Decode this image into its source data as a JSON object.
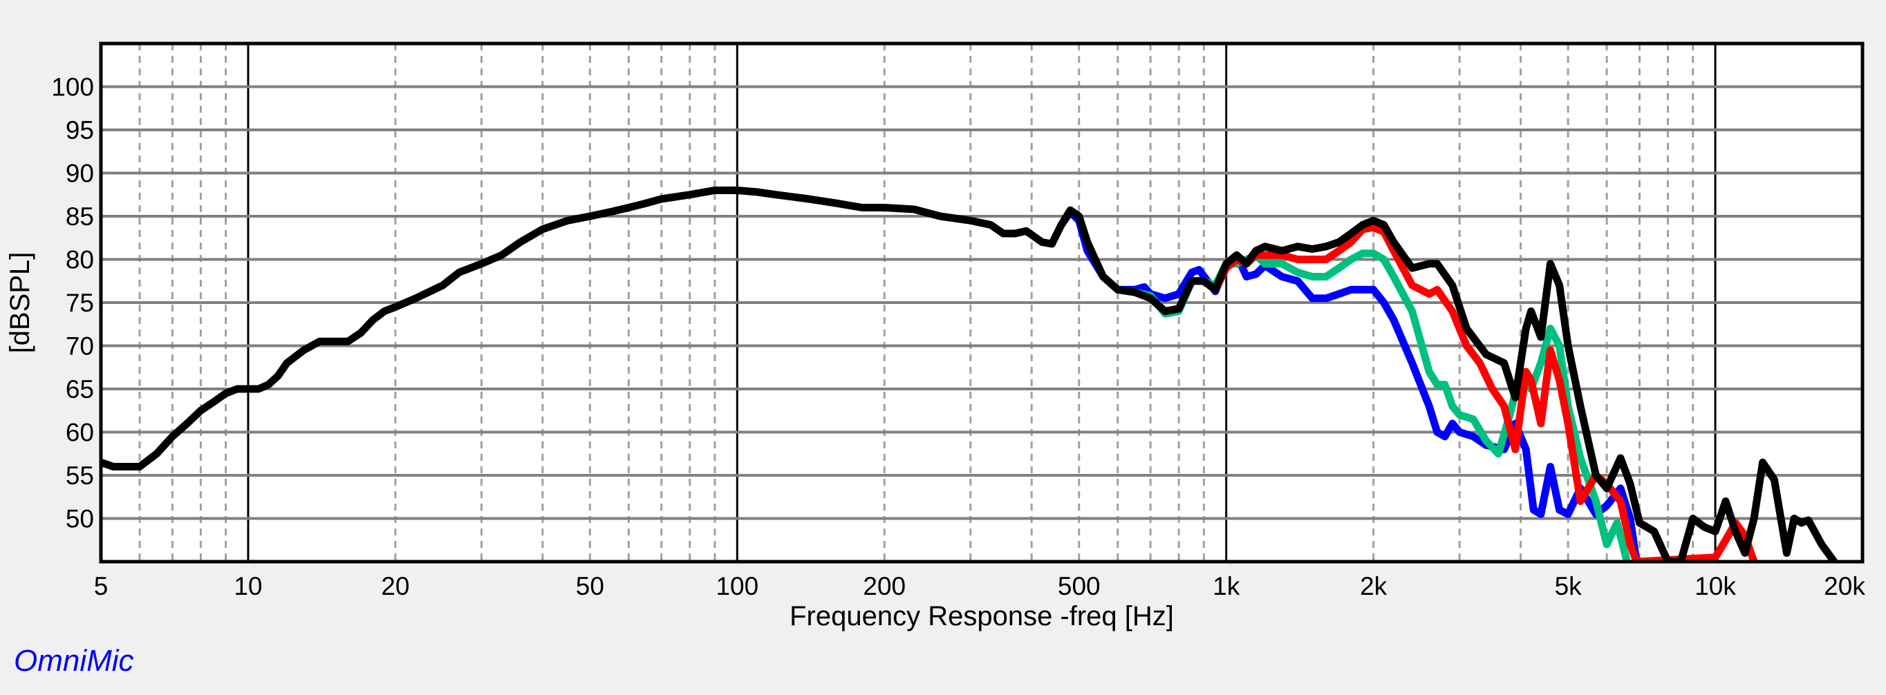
{
  "brand": {
    "label": "OmniMic",
    "color": "#0000ff"
  },
  "chart_data": {
    "type": "line",
    "title": "",
    "xlabel": "Frequency Response -freq [Hz]",
    "ylabel": "[dBSPL]",
    "xscale": "log",
    "xlim": [
      5,
      20000
    ],
    "ylim": [
      45,
      105
    ],
    "grid": true,
    "legend": null,
    "x_tick_labels": [
      {
        "value": 5,
        "label": "5"
      },
      {
        "value": 10,
        "label": "10"
      },
      {
        "value": 20,
        "label": "20"
      },
      {
        "value": 50,
        "label": "50"
      },
      {
        "value": 100,
        "label": "100"
      },
      {
        "value": 200,
        "label": "200"
      },
      {
        "value": 500,
        "label": "500"
      },
      {
        "value": 1000,
        "label": "1k"
      },
      {
        "value": 2000,
        "label": "2k"
      },
      {
        "value": 5000,
        "label": "5k"
      },
      {
        "value": 10000,
        "label": "10k"
      },
      {
        "value": 20000,
        "label": "20k"
      }
    ],
    "y_ticks": [
      50,
      55,
      60,
      65,
      70,
      75,
      80,
      85,
      90,
      95,
      100
    ],
    "series": [
      {
        "name": "blue",
        "color": "#0000ff",
        "points": [
          [
            460,
            84
          ],
          [
            480,
            85.5
          ],
          [
            500,
            84.5
          ],
          [
            520,
            81
          ],
          [
            560,
            78
          ],
          [
            600,
            76.5
          ],
          [
            650,
            76.5
          ],
          [
            680,
            76.8
          ],
          [
            700,
            76
          ],
          [
            750,
            75.5
          ],
          [
            800,
            76
          ],
          [
            850,
            78.5
          ],
          [
            880,
            78.8
          ],
          [
            950,
            76.3
          ],
          [
            1000,
            79.5
          ],
          [
            1050,
            80.5
          ],
          [
            1100,
            78
          ],
          [
            1150,
            78.3
          ],
          [
            1200,
            79.3
          ],
          [
            1300,
            78
          ],
          [
            1400,
            77.5
          ],
          [
            1500,
            75.5
          ],
          [
            1600,
            75.5
          ],
          [
            1700,
            76
          ],
          [
            1800,
            76.5
          ],
          [
            1900,
            76.5
          ],
          [
            2000,
            76.5
          ],
          [
            2100,
            75
          ],
          [
            2200,
            73
          ],
          [
            2400,
            68
          ],
          [
            2600,
            63
          ],
          [
            2700,
            60
          ],
          [
            2800,
            59.5
          ],
          [
            2900,
            61
          ],
          [
            3000,
            60
          ],
          [
            3200,
            59.5
          ],
          [
            3400,
            58.5
          ],
          [
            3700,
            58
          ],
          [
            3900,
            61
          ],
          [
            4100,
            58
          ],
          [
            4250,
            51
          ],
          [
            4400,
            50.5
          ],
          [
            4600,
            56
          ],
          [
            4800,
            51
          ],
          [
            5000,
            50.5
          ],
          [
            5300,
            53.5
          ],
          [
            5700,
            50.5
          ],
          [
            6000,
            51.5
          ],
          [
            6400,
            53.5
          ],
          [
            6700,
            50
          ],
          [
            6900,
            45
          ]
        ]
      },
      {
        "name": "green",
        "color": "#00c080",
        "points": [
          [
            600,
            76.5
          ],
          [
            650,
            76.2
          ],
          [
            700,
            75.8
          ],
          [
            750,
            73.7
          ],
          [
            800,
            74
          ],
          [
            850,
            77.5
          ],
          [
            900,
            77.5
          ],
          [
            950,
            77
          ],
          [
            1000,
            79.5
          ],
          [
            1050,
            79.5
          ],
          [
            1100,
            80
          ],
          [
            1150,
            80.5
          ],
          [
            1200,
            79.5
          ],
          [
            1300,
            79.5
          ],
          [
            1400,
            78.5
          ],
          [
            1500,
            78
          ],
          [
            1600,
            78
          ],
          [
            1700,
            79
          ],
          [
            1800,
            80
          ],
          [
            1900,
            80.7
          ],
          [
            2000,
            80.7
          ],
          [
            2100,
            80
          ],
          [
            2200,
            78
          ],
          [
            2400,
            74
          ],
          [
            2600,
            67
          ],
          [
            2700,
            65.5
          ],
          [
            2800,
            65.5
          ],
          [
            2900,
            63
          ],
          [
            3000,
            62
          ],
          [
            3200,
            61.5
          ],
          [
            3400,
            59
          ],
          [
            3600,
            57.5
          ],
          [
            3800,
            62
          ],
          [
            4000,
            67
          ],
          [
            4200,
            65
          ],
          [
            4400,
            68
          ],
          [
            4600,
            72
          ],
          [
            4800,
            70
          ],
          [
            5000,
            63
          ],
          [
            5300,
            57
          ],
          [
            5700,
            52
          ],
          [
            6000,
            47
          ],
          [
            6300,
            49.5
          ],
          [
            6600,
            45
          ]
        ]
      },
      {
        "name": "red",
        "color": "#ff0000",
        "points": [
          [
            750,
            74
          ],
          [
            800,
            74.3
          ],
          [
            850,
            77.5
          ],
          [
            900,
            77.5
          ],
          [
            950,
            76.5
          ],
          [
            1000,
            79
          ],
          [
            1050,
            80
          ],
          [
            1100,
            79.5
          ],
          [
            1150,
            80.5
          ],
          [
            1200,
            80.5
          ],
          [
            1300,
            80.5
          ],
          [
            1400,
            80
          ],
          [
            1500,
            80
          ],
          [
            1600,
            80
          ],
          [
            1700,
            81
          ],
          [
            1800,
            82
          ],
          [
            1900,
            83.5
          ],
          [
            2000,
            83.7
          ],
          [
            2100,
            83.2
          ],
          [
            2200,
            81
          ],
          [
            2400,
            77
          ],
          [
            2600,
            76
          ],
          [
            2700,
            76.5
          ],
          [
            2900,
            74
          ],
          [
            3100,
            70
          ],
          [
            3300,
            68
          ],
          [
            3500,
            65
          ],
          [
            3700,
            63
          ],
          [
            3900,
            58
          ],
          [
            4100,
            67
          ],
          [
            4200,
            66
          ],
          [
            4400,
            61
          ],
          [
            4600,
            69.5
          ],
          [
            4800,
            66
          ],
          [
            5000,
            61
          ],
          [
            5300,
            52
          ],
          [
            5700,
            55
          ],
          [
            6000,
            54
          ],
          [
            6400,
            52
          ],
          [
            6700,
            47
          ],
          [
            6900,
            45
          ],
          [
            10000,
            45.5
          ],
          [
            10500,
            47.5
          ],
          [
            11000,
            49.5
          ],
          [
            11500,
            48
          ],
          [
            12000,
            45
          ]
        ]
      },
      {
        "name": "black",
        "color": "#000000",
        "points": [
          [
            5,
            56.5
          ],
          [
            5.3,
            56
          ],
          [
            6,
            56
          ],
          [
            6.5,
            57.5
          ],
          [
            7,
            59.5
          ],
          [
            7.5,
            61
          ],
          [
            8,
            62.5
          ],
          [
            8.5,
            63.5
          ],
          [
            9,
            64.5
          ],
          [
            9.5,
            65
          ],
          [
            10,
            65
          ],
          [
            10.5,
            65
          ],
          [
            11,
            65.5
          ],
          [
            11.5,
            66.5
          ],
          [
            12,
            68
          ],
          [
            13,
            69.5
          ],
          [
            14,
            70.5
          ],
          [
            15,
            70.5
          ],
          [
            16,
            70.5
          ],
          [
            17,
            71.5
          ],
          [
            18,
            73
          ],
          [
            19,
            74
          ],
          [
            20,
            74.5
          ],
          [
            22,
            75.5
          ],
          [
            25,
            77
          ],
          [
            27,
            78.5
          ],
          [
            30,
            79.5
          ],
          [
            33,
            80.5
          ],
          [
            36,
            82
          ],
          [
            40,
            83.5
          ],
          [
            45,
            84.5
          ],
          [
            50,
            85
          ],
          [
            55,
            85.5
          ],
          [
            60,
            86
          ],
          [
            65,
            86.5
          ],
          [
            70,
            87
          ],
          [
            80,
            87.5
          ],
          [
            90,
            88
          ],
          [
            100,
            88
          ],
          [
            110,
            87.8
          ],
          [
            120,
            87.5
          ],
          [
            140,
            87
          ],
          [
            160,
            86.5
          ],
          [
            180,
            86
          ],
          [
            200,
            86
          ],
          [
            230,
            85.8
          ],
          [
            260,
            85
          ],
          [
            300,
            84.5
          ],
          [
            330,
            84
          ],
          [
            350,
            83
          ],
          [
            370,
            83
          ],
          [
            390,
            83.3
          ],
          [
            420,
            82
          ],
          [
            440,
            81.8
          ],
          [
            460,
            84
          ],
          [
            480,
            85.7
          ],
          [
            500,
            85
          ],
          [
            520,
            82
          ],
          [
            560,
            78
          ],
          [
            600,
            76.5
          ],
          [
            650,
            76.2
          ],
          [
            700,
            75.5
          ],
          [
            750,
            74
          ],
          [
            800,
            74.3
          ],
          [
            850,
            77.5
          ],
          [
            900,
            77.5
          ],
          [
            950,
            76.5
          ],
          [
            1000,
            79.5
          ],
          [
            1050,
            80.5
          ],
          [
            1100,
            79.5
          ],
          [
            1150,
            81
          ],
          [
            1200,
            81.5
          ],
          [
            1300,
            81
          ],
          [
            1400,
            81.5
          ],
          [
            1500,
            81.2
          ],
          [
            1600,
            81.5
          ],
          [
            1700,
            82
          ],
          [
            1800,
            83
          ],
          [
            1900,
            84
          ],
          [
            2000,
            84.5
          ],
          [
            2100,
            84
          ],
          [
            2200,
            82
          ],
          [
            2400,
            79
          ],
          [
            2600,
            79.5
          ],
          [
            2700,
            79.5
          ],
          [
            2900,
            77
          ],
          [
            3100,
            72
          ],
          [
            3400,
            69
          ],
          [
            3700,
            68
          ],
          [
            3900,
            64
          ],
          [
            4100,
            72
          ],
          [
            4200,
            74
          ],
          [
            4400,
            71
          ],
          [
            4600,
            79.5
          ],
          [
            4800,
            77
          ],
          [
            5000,
            70
          ],
          [
            5300,
            63
          ],
          [
            5700,
            55
          ],
          [
            6000,
            53.5
          ],
          [
            6400,
            57
          ],
          [
            6700,
            54
          ],
          [
            7000,
            49.5
          ],
          [
            7500,
            48.5
          ],
          [
            8000,
            45
          ],
          [
            8500,
            45
          ],
          [
            9000,
            50
          ],
          [
            9500,
            49
          ],
          [
            10000,
            48.5
          ],
          [
            10500,
            52
          ],
          [
            11000,
            48.5
          ],
          [
            11500,
            46
          ],
          [
            12000,
            50
          ],
          [
            12500,
            56.5
          ],
          [
            13200,
            54.5
          ],
          [
            14000,
            46
          ],
          [
            14500,
            50
          ],
          [
            15000,
            49.5
          ],
          [
            15500,
            49.8
          ],
          [
            16500,
            47
          ],
          [
            17500,
            45
          ]
        ]
      }
    ]
  },
  "axes": {
    "xlabel": "Frequency Response -freq [Hz]",
    "ylabel": "[dBSPL]"
  },
  "style": {
    "background": "#f0f0f0",
    "plot_background": "#ffffff",
    "h_grid_color": "#808080",
    "v_grid_minor_color": "#a0a0a0",
    "v_grid_major_color": "#000000"
  }
}
